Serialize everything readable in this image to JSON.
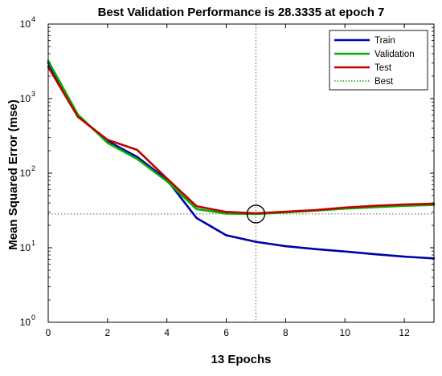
{
  "chart_data": {
    "type": "line",
    "title": "Best Validation Performance is 28.3335 at epoch 7",
    "xlabel": "13 Epochs",
    "ylabel": "Mean Squared Error  (mse)",
    "xlim": [
      0,
      13
    ],
    "ylim": [
      1,
      10000
    ],
    "yscale": "log",
    "grid": false,
    "legend_position": "top-right",
    "x_ticks": [
      "0",
      "2",
      "4",
      "6",
      "8",
      "10",
      "12"
    ],
    "x_tick_values": [
      0,
      2,
      4,
      6,
      8,
      10,
      12
    ],
    "y_ticks": [
      {
        "base": "10",
        "exp": "0",
        "value": 1
      },
      {
        "base": "10",
        "exp": "1",
        "value": 10
      },
      {
        "base": "10",
        "exp": "2",
        "value": 100
      },
      {
        "base": "10",
        "exp": "3",
        "value": 1000
      },
      {
        "base": "10",
        "exp": "4",
        "value": 10000
      }
    ],
    "x": [
      0,
      1,
      2,
      3,
      4,
      5,
      6,
      7,
      8,
      9,
      10,
      11,
      12,
      13
    ],
    "series": [
      {
        "name": "Train",
        "color": "#0000a8",
        "style": "solid",
        "values": [
          3000,
          580,
          270,
          165,
          82,
          25,
          14.7,
          12,
          10.5,
          9.6,
          8.9,
          8.2,
          7.6,
          7.2
        ]
      },
      {
        "name": "Validation",
        "color": "#00b000",
        "style": "solid",
        "values": [
          3200,
          610,
          255,
          155,
          78,
          33,
          28.7,
          28.3,
          29.8,
          31.5,
          33.5,
          35.0,
          36.5,
          37.5
        ]
      },
      {
        "name": "Test",
        "color": "#c00000",
        "style": "solid",
        "values": [
          2650,
          570,
          280,
          205,
          85,
          36,
          30.2,
          29.0,
          30.4,
          32.0,
          34.5,
          36.5,
          38.0,
          39.0
        ]
      }
    ],
    "best": {
      "label": "Best",
      "epoch": 7,
      "value": 28.3335,
      "color": "#008000"
    },
    "guide_color": "#555555",
    "marker_color": "#000000"
  }
}
